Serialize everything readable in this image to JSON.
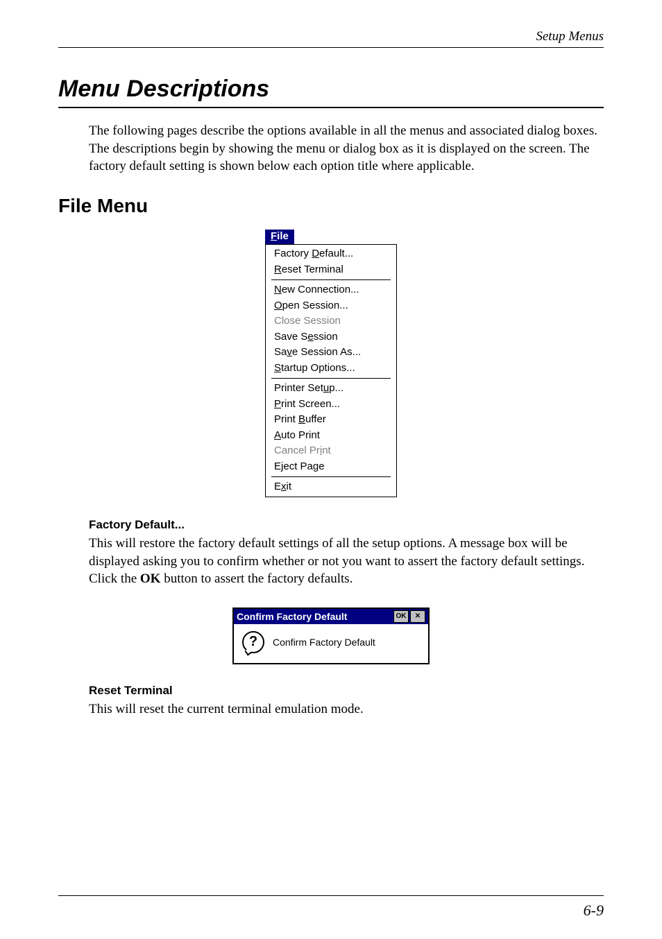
{
  "header": {
    "text": "Setup Menus"
  },
  "title": "Menu Descriptions",
  "intro": "The following pages describe the options available in all the menus and associated dialog boxes. The descriptions begin by showing the menu or dialog box as it is displayed on the screen. The factory default setting is shown below each option title where applicable.",
  "section": "File Menu",
  "fileMenu": {
    "title_pre": "F",
    "title_underlined": "",
    "title_post": "ile",
    "title_mnemonic": "F",
    "title_rest": "ile",
    "groups": [
      [
        {
          "html": "Factory <span class='mnemonic'>D</span>efault...",
          "disabled": false
        },
        {
          "html": "<span class='mnemonic'>R</span>eset Terminal",
          "disabled": false
        }
      ],
      [
        {
          "html": "<span class='mnemonic'>N</span>ew Connection...",
          "disabled": false
        },
        {
          "html": "<span class='mnemonic'>O</span>pen Session...",
          "disabled": false
        },
        {
          "html": "Close Session",
          "disabled": true
        },
        {
          "html": "Save S<span class='mnemonic'>e</span>ssion",
          "disabled": false
        },
        {
          "html": "Sa<span class='mnemonic'>v</span>e Session As...",
          "disabled": false
        },
        {
          "html": "<span class='mnemonic'>S</span>tartup Options...",
          "disabled": false
        }
      ],
      [
        {
          "html": "Printer Set<span class='mnemonic'>u</span>p...",
          "disabled": false
        },
        {
          "html": "<span class='mnemonic'>P</span>rint Screen...",
          "disabled": false
        },
        {
          "html": "Print <span class='mnemonic'>B</span>uffer",
          "disabled": false
        },
        {
          "html": "<span class='mnemonic'>A</span>uto Print",
          "disabled": false
        },
        {
          "html": "Cancel Pr<span class='mnemonic'>i</span>nt",
          "disabled": true
        },
        {
          "html": "E<span class='mnemonic'>j</span>ect Page",
          "disabled": false
        }
      ],
      [
        {
          "html": "E<span class='mnemonic'>x</span>it",
          "disabled": false
        }
      ]
    ]
  },
  "factoryDefault": {
    "heading": "Factory Default...",
    "text_pre": "This will restore the factory default settings of all the setup options. A message box will be displayed asking you to confirm whether or not you want to assert the factory default settings. Click the ",
    "text_bold": "OK",
    "text_post": " button to assert the factory defaults."
  },
  "dialog": {
    "title": "Confirm Factory Default",
    "okLabel": "OK",
    "closeLabel": "✕",
    "body": "Confirm Factory Default",
    "qmark": "?"
  },
  "resetTerminal": {
    "heading": "Reset Terminal",
    "text": "This will reset the current terminal emulation mode."
  },
  "pageNumber": "6-9"
}
